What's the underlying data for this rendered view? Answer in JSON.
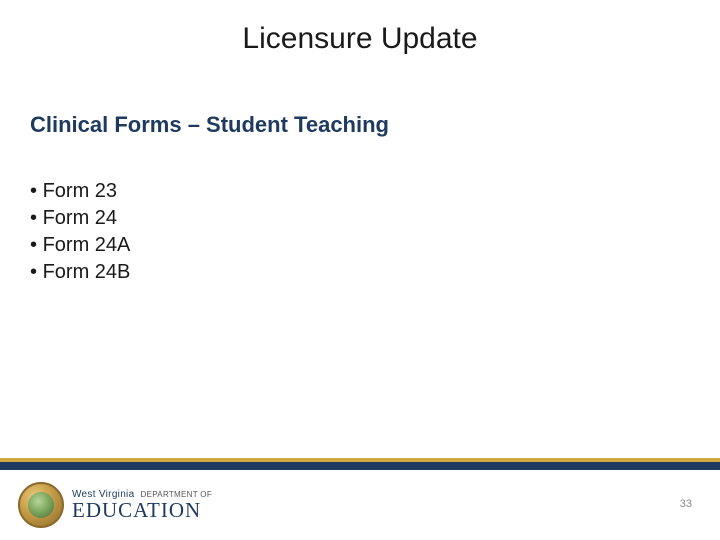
{
  "title": "Licensure Update",
  "subtitle": "Clinical Forms – Student Teaching",
  "bullets": [
    "Form 23",
    "Form 24",
    "Form 24A",
    "Form 24B"
  ],
  "footer": {
    "gold_bar_color": "#d4a840",
    "navy_bar_color": "#1f3a5f"
  },
  "logo": {
    "top_line_state": "West Virginia",
    "top_line_dept": "DEPARTMENT OF",
    "main_word": "EDUCATION"
  },
  "page_number": "33",
  "colors": {
    "title_color": "#1a1a1a",
    "subtitle_color": "#1f3a5f",
    "bullet_color": "#1a1a1a",
    "background": "#ffffff"
  },
  "fonts": {
    "title_size_pt": 30,
    "subtitle_size_pt": 22,
    "bullet_size_pt": 20
  }
}
